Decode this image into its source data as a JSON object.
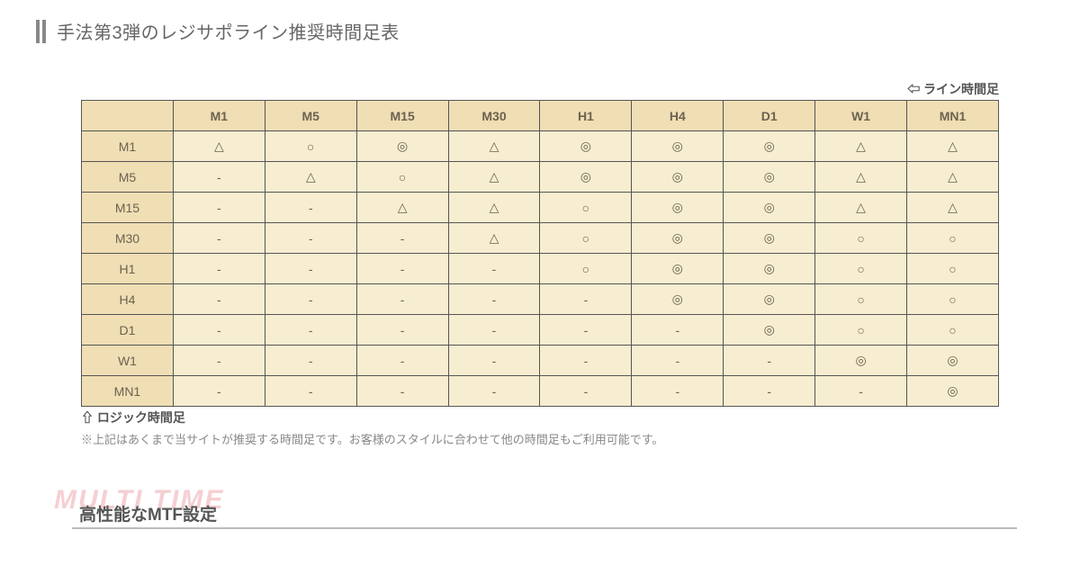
{
  "section": {
    "title": "手法第3弾のレジサポライン推奨時間足表"
  },
  "table": {
    "type": "table",
    "top_label": "⇦ ライン時間足",
    "bottom_label": "⇧ ロジック時間足",
    "columns": [
      "M1",
      "M5",
      "M15",
      "M30",
      "H1",
      "H4",
      "D1",
      "W1",
      "MN1"
    ],
    "row_labels": [
      "M1",
      "M5",
      "M15",
      "M30",
      "H1",
      "H4",
      "D1",
      "W1",
      "MN1"
    ],
    "rows": [
      [
        "△",
        "○",
        "◎",
        "△",
        "◎",
        "◎",
        "◎",
        "△",
        "△"
      ],
      [
        "-",
        "△",
        "○",
        "△",
        "◎",
        "◎",
        "◎",
        "△",
        "△"
      ],
      [
        "-",
        "-",
        "△",
        "△",
        "○",
        "◎",
        "◎",
        "△",
        "△"
      ],
      [
        "-",
        "-",
        "-",
        "△",
        "○",
        "◎",
        "◎",
        "○",
        "○"
      ],
      [
        "-",
        "-",
        "-",
        "-",
        "○",
        "◎",
        "◎",
        "○",
        "○"
      ],
      [
        "-",
        "-",
        "-",
        "-",
        "-",
        "◎",
        "◎",
        "○",
        "○"
      ],
      [
        "-",
        "-",
        "-",
        "-",
        "-",
        "-",
        "◎",
        "○",
        "○"
      ],
      [
        "-",
        "-",
        "-",
        "-",
        "-",
        "-",
        "-",
        "◎",
        "◎"
      ],
      [
        "-",
        "-",
        "-",
        "-",
        "-",
        "-",
        "-",
        "-",
        "◎"
      ]
    ],
    "colors": {
      "header_bg": "#f0deb4",
      "cell_bg": "#f7edd0",
      "border": "#555555",
      "text": "#6b6250"
    },
    "note": "※上記はあくまで当サイトが推奨する時間足です。お客様のスタイルに合わせて他の時間足もご利用可能です。"
  },
  "mtf": {
    "ghost": "MULTI TIME",
    "ghost_color": "#f6cfd3",
    "title": "高性能なMTF設定",
    "underline_color": "#bcbcbc"
  }
}
